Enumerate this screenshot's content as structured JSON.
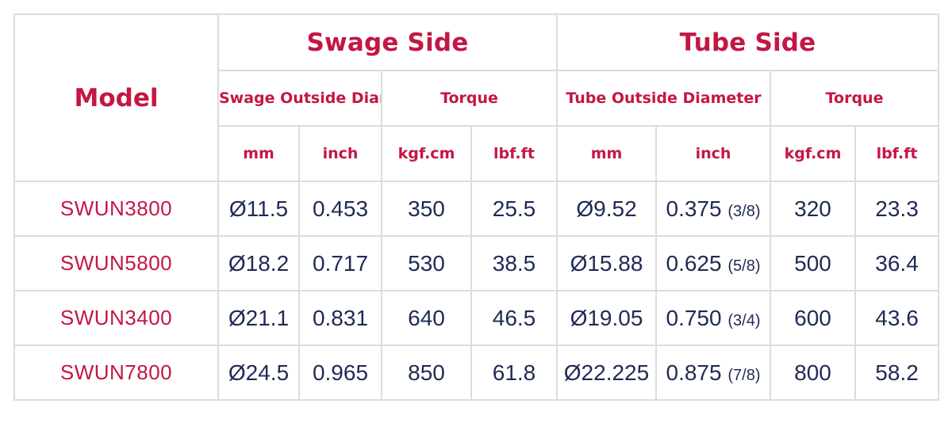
{
  "table": {
    "model_header": "Model",
    "swage_side": "Swage Side",
    "tube_side": "Tube Side",
    "swage_od": "Swage Outside Diameter",
    "swage_torque": "Torque",
    "tube_od": "Tube Outside Diameter",
    "tube_torque": "Torque",
    "units": {
      "s_mm": "mm",
      "s_inch": "inch",
      "s_kgf": "kgf.cm",
      "s_lbf": "lbf.ft",
      "t_mm": "mm",
      "t_inch": "inch",
      "t_kgf": "kgf.cm",
      "t_lbf": "lbf.ft"
    },
    "rows": [
      {
        "model": "SWUN3800",
        "s_mm": "Ø11.5",
        "s_inch": "0.453",
        "s_kgf": "350",
        "s_lbf": "25.5",
        "t_mm": "Ø9.52",
        "t_inch": "0.375",
        "t_frac": "(3/8)",
        "t_kgf": "320",
        "t_lbf": "23.3"
      },
      {
        "model": "SWUN5800",
        "s_mm": "Ø18.2",
        "s_inch": "0.717",
        "s_kgf": "530",
        "s_lbf": "38.5",
        "t_mm": "Ø15.88",
        "t_inch": "0.625",
        "t_frac": "(5/8)",
        "t_kgf": "500",
        "t_lbf": "36.4"
      },
      {
        "model": "SWUN3400",
        "s_mm": "Ø21.1",
        "s_inch": "0.831",
        "s_kgf": "640",
        "s_lbf": "46.5",
        "t_mm": "Ø19.05",
        "t_inch": "0.750",
        "t_frac": "(3/4)",
        "t_kgf": "600",
        "t_lbf": "43.6"
      },
      {
        "model": "SWUN7800",
        "s_mm": "Ø24.5",
        "s_inch": "0.965",
        "s_kgf": "850",
        "s_lbf": "61.8",
        "t_mm": "Ø22.225",
        "t_inch": "0.875",
        "t_frac": "(7/8)",
        "t_kgf": "800",
        "t_lbf": "58.2"
      }
    ]
  }
}
